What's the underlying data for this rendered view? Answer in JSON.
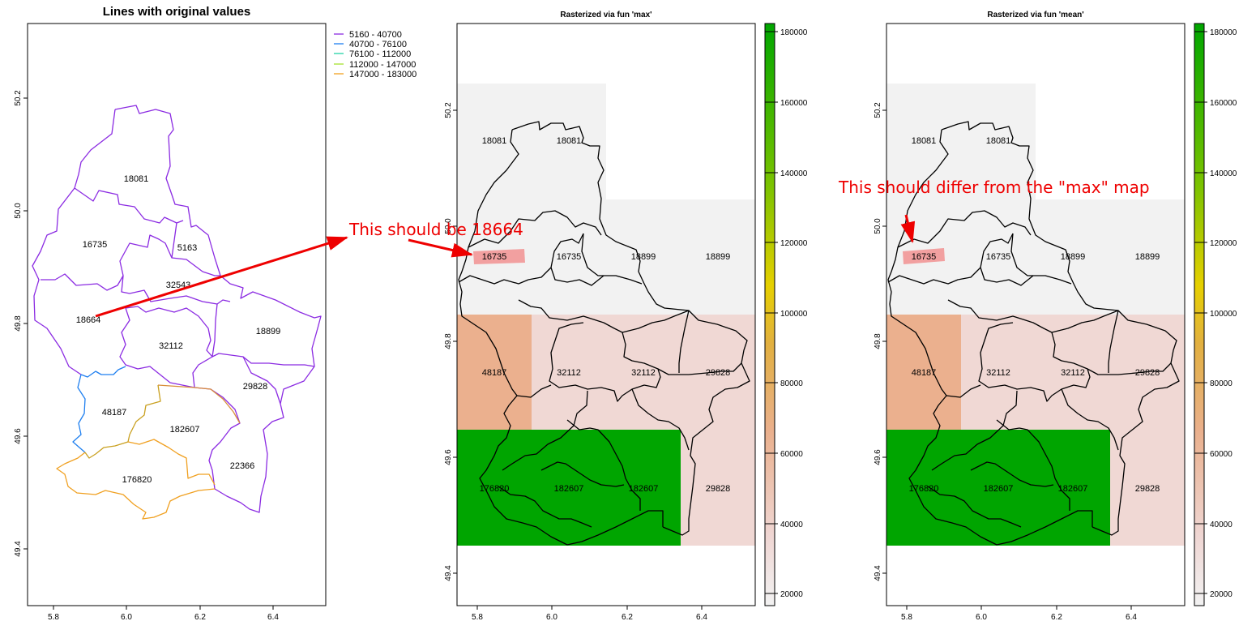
{
  "panels": {
    "left": {
      "title": "Lines with original values",
      "x_ticks": [
        "5.8",
        "6.0",
        "6.2",
        "6.4"
      ],
      "y_ticks": [
        "50.2",
        "50.0",
        "49.8",
        "49.6",
        "49.4"
      ],
      "legend": [
        {
          "label": "5160 - 40700",
          "color": "#8b2be2"
        },
        {
          "label": "40700 - 76100",
          "color": "#1e7ff0"
        },
        {
          "label": "76100 - 112000",
          "color": "#22d3a6"
        },
        {
          "label": "112000 - 147000",
          "color": "#a6e22e"
        },
        {
          "label": "147000 - 183000",
          "color": "#f0a020"
        }
      ],
      "labels": [
        "18081",
        "16735",
        "5163",
        "32543",
        "18664",
        "32112",
        "18899",
        "29828",
        "48187",
        "182607",
        "22366",
        "176820"
      ]
    },
    "middle": {
      "title": "Rasterized via fun 'max'",
      "x_ticks": [
        "5.8",
        "6.0",
        "6.2",
        "6.4"
      ],
      "y_ticks": [
        "50.2",
        "50.0",
        "49.8",
        "49.6",
        "49.4"
      ],
      "labels": [
        "18081",
        "18081",
        "16735",
        "16735",
        "18899",
        "18899",
        "48187",
        "32112",
        "32112",
        "29828",
        "176820",
        "182607",
        "182607",
        "29828"
      ]
    },
    "right": {
      "title": "Rasterized via fun 'mean'",
      "x_ticks": [
        "5.8",
        "6.0",
        "6.2",
        "6.4"
      ],
      "y_ticks": [
        "50.2",
        "50.0",
        "49.8",
        "49.6",
        "49.4"
      ],
      "labels": [
        "18081",
        "18081",
        "16735",
        "16735",
        "18899",
        "18899",
        "48187",
        "32112",
        "32112",
        "29828",
        "176820",
        "182607",
        "182607",
        "29828"
      ]
    }
  },
  "colorbar": {
    "ticks": [
      "180000",
      "160000",
      "140000",
      "120000",
      "100000",
      "80000",
      "60000",
      "40000",
      "20000"
    ],
    "colors": [
      "#f2f2f2",
      "#efd6d3",
      "#eab08d",
      "#e6d000",
      "#7cc300",
      "#00a600"
    ]
  },
  "raster_colors": {
    "gray": "#f2f2f2",
    "pink": "#f0d8d4",
    "salmon": "#ebb08e",
    "green": "#00a500",
    "highlight": "#f2a0a0"
  },
  "annotations": {
    "middle": "This should be 18664",
    "right": "This should differ from the \"max\" map",
    "color": "#ee0000"
  }
}
